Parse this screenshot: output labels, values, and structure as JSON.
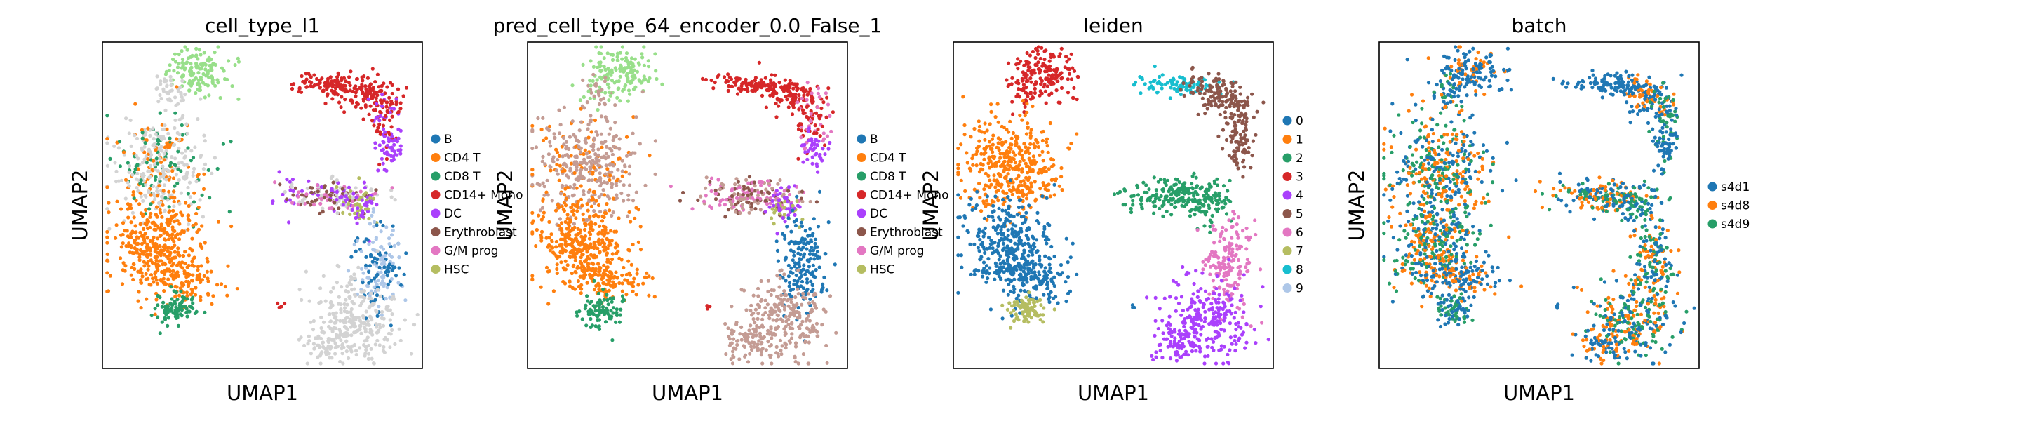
{
  "chart_data": [
    {
      "type": "scatter",
      "title": "cell_type_l1",
      "xlabel": "UMAP1",
      "ylabel": "UMAP2",
      "legend_position": "right",
      "series": [
        {
          "name": "B",
          "color": "#1f77b4"
        },
        {
          "name": "CD4 T",
          "color": "#ff7f0e"
        },
        {
          "name": "CD8 T",
          "color": "#279e68"
        },
        {
          "name": "CD14+ Mono",
          "color": "#d62728"
        },
        {
          "name": "DC",
          "color": "#aa40fc"
        },
        {
          "name": "Erythroblast",
          "color": "#8c564b"
        },
        {
          "name": "G/M prog",
          "color": "#e377c2"
        },
        {
          "name": "HSC",
          "color": "#b5bd61"
        }
      ],
      "unlabeled_color": "#d3d3d3"
    },
    {
      "type": "scatter",
      "title": "pred_cell_type_64_encoder_0.0_False_1",
      "xlabel": "UMAP1",
      "ylabel": "UMAP2",
      "legend_position": "right",
      "series": [
        {
          "name": "B",
          "color": "#1f77b4"
        },
        {
          "name": "CD4 T",
          "color": "#ff7f0e"
        },
        {
          "name": "CD8 T",
          "color": "#279e68"
        },
        {
          "name": "CD14+ Mono",
          "color": "#d62728"
        },
        {
          "name": "DC",
          "color": "#aa40fc"
        },
        {
          "name": "Erythroblast",
          "color": "#8c564b"
        },
        {
          "name": "G/M prog",
          "color": "#e377c2"
        },
        {
          "name": "HSC",
          "color": "#b5bd61"
        }
      ]
    },
    {
      "type": "scatter",
      "title": "leiden",
      "xlabel": "UMAP1",
      "ylabel": "UMAP2",
      "legend_position": "right",
      "series": [
        {
          "name": "0",
          "color": "#1f77b4"
        },
        {
          "name": "1",
          "color": "#ff7f0e"
        },
        {
          "name": "2",
          "color": "#279e68"
        },
        {
          "name": "3",
          "color": "#d62728"
        },
        {
          "name": "4",
          "color": "#aa40fc"
        },
        {
          "name": "5",
          "color": "#8c564b"
        },
        {
          "name": "6",
          "color": "#e377c2"
        },
        {
          "name": "7",
          "color": "#b5bd61"
        },
        {
          "name": "8",
          "color": "#17becf"
        },
        {
          "name": "9",
          "color": "#aec7e8"
        }
      ]
    },
    {
      "type": "scatter",
      "title": "batch",
      "xlabel": "UMAP1",
      "ylabel": "UMAP2",
      "legend_position": "right",
      "series": [
        {
          "name": "s4d1",
          "color": "#1f77b4"
        },
        {
          "name": "s4d8",
          "color": "#ff7f0e"
        },
        {
          "name": "s4d9",
          "color": "#279e68"
        }
      ]
    }
  ]
}
